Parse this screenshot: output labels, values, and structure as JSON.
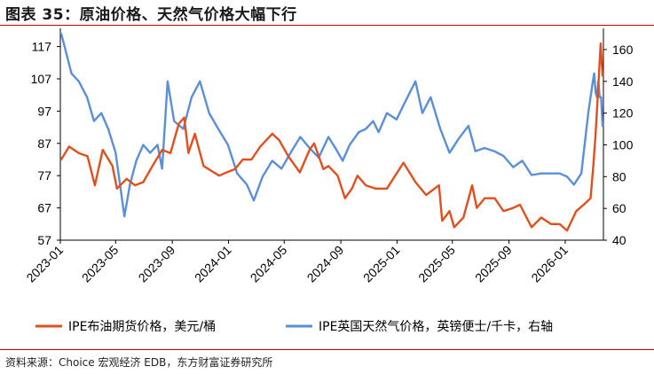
{
  "title": "图表 35：原油价格、天然气价格大幅下行",
  "source": "资料来源：Choice 宏观经济 EDB，东方财富证券研究所",
  "chart_data": {
    "type": "line",
    "x_tick_labels": [
      "2023-01",
      "2023-05",
      "2023-09",
      "2024-01",
      "2024-05",
      "2024-09",
      "2025-01",
      "2025-05",
      "2025-09",
      "2026-01"
    ],
    "y_left": {
      "ticks": [
        "57",
        "67",
        "77",
        "87",
        "97",
        "107",
        "117"
      ],
      "range": [
        57,
        121
      ]
    },
    "y_right": {
      "ticks": [
        "40",
        "60",
        "80",
        "100",
        "120",
        "140",
        "160"
      ],
      "range": [
        40,
        170
      ]
    },
    "legend_position": "bottom",
    "series": [
      {
        "name": "IPE布油期货价格，美元/桶",
        "axis": "left",
        "color": "#E0501E",
        "x": [
          "2023-01-03",
          "2023-01-20",
          "2023-02-10",
          "2023-03-01",
          "2023-03-17",
          "2023-04-03",
          "2023-04-24",
          "2023-05-04",
          "2023-05-25",
          "2023-06-12",
          "2023-06-30",
          "2023-07-20",
          "2023-08-10",
          "2023-08-28",
          "2023-09-15",
          "2023-09-27",
          "2023-10-06",
          "2023-10-20",
          "2023-11-08",
          "2023-11-30",
          "2023-12-12",
          "2023-12-28",
          "2024-01-15",
          "2024-02-01",
          "2024-02-20",
          "2024-03-10",
          "2024-04-05",
          "2024-04-20",
          "2024-05-10",
          "2024-06-04",
          "2024-06-25",
          "2024-07-05",
          "2024-07-25",
          "2024-08-05",
          "2024-08-25",
          "2024-09-10",
          "2024-09-25",
          "2024-10-07",
          "2024-10-25",
          "2024-11-15",
          "2024-12-10",
          "2025-01-15",
          "2025-02-10",
          "2025-03-05",
          "2025-04-02",
          "2025-04-09",
          "2025-04-25",
          "2025-05-05",
          "2025-05-25",
          "2025-06-13",
          "2025-06-23",
          "2025-07-10",
          "2025-08-01",
          "2025-08-20",
          "2025-09-10",
          "2025-09-25",
          "2025-10-20",
          "2025-11-10",
          "2025-12-01",
          "2025-12-20",
          "2026-01-05",
          "2026-01-25",
          "2026-02-10",
          "2026-02-25",
          "2026-03-03",
          "2026-03-08",
          "2026-03-12",
          "2026-03-16",
          "2026-03-19",
          "2026-03-23"
        ],
        "values": [
          82,
          86,
          84,
          83,
          74,
          85,
          80,
          73,
          76,
          74,
          75,
          80,
          85,
          84,
          93,
          95,
          84,
          90,
          80,
          78,
          77,
          78,
          79,
          82,
          82,
          86,
          90,
          88,
          83,
          78,
          85,
          87,
          79,
          80,
          77,
          70,
          73,
          77,
          74,
          73,
          73,
          81,
          75,
          71,
          74,
          63,
          66,
          61,
          64,
          74,
          67,
          70,
          70,
          66,
          67,
          68,
          61,
          64,
          62,
          62,
          60,
          66,
          68,
          70,
          80,
          90,
          100,
          110,
          118,
          108
        ]
      },
      {
        "name": "IPE英国天然气价格，英镑便士/千卡，右轴",
        "axis": "right",
        "color": "#5B8FD6",
        "x": [
          "2023-01-03",
          "2023-01-12",
          "2023-01-25",
          "2023-02-10",
          "2023-02-28",
          "2023-03-15",
          "2023-03-31",
          "2023-04-15",
          "2023-05-01",
          "2023-05-20",
          "2023-06-01",
          "2023-06-15",
          "2023-06-30",
          "2023-07-15",
          "2023-07-31",
          "2023-08-10",
          "2023-08-22",
          "2023-09-05",
          "2023-09-25",
          "2023-10-13",
          "2023-10-31",
          "2023-11-20",
          "2023-12-10",
          "2023-12-31",
          "2024-01-20",
          "2024-02-10",
          "2024-02-25",
          "2024-03-15",
          "2024-04-05",
          "2024-04-25",
          "2024-05-15",
          "2024-06-05",
          "2024-06-25",
          "2024-07-15",
          "2024-08-05",
          "2024-08-20",
          "2024-09-05",
          "2024-09-20",
          "2024-10-10",
          "2024-10-25",
          "2024-11-10",
          "2024-11-22",
          "2024-12-10",
          "2024-12-31",
          "2025-01-15",
          "2025-02-10",
          "2025-02-25",
          "2025-03-15",
          "2025-04-05",
          "2025-04-25",
          "2025-05-15",
          "2025-06-05",
          "2025-06-20",
          "2025-07-10",
          "2025-07-31",
          "2025-08-20",
          "2025-09-10",
          "2025-09-30",
          "2025-10-20",
          "2025-11-10",
          "2025-11-30",
          "2025-12-20",
          "2026-01-05",
          "2026-01-20",
          "2026-02-05",
          "2026-02-20",
          "2026-03-02",
          "2026-03-05",
          "2026-03-08",
          "2026-03-11",
          "2026-03-14",
          "2026-03-17",
          "2026-03-20",
          "2026-03-23"
        ],
        "values": [
          170,
          160,
          145,
          140,
          130,
          115,
          120,
          110,
          95,
          55,
          75,
          90,
          100,
          95,
          100,
          85,
          140,
          115,
          110,
          130,
          140,
          120,
          110,
          100,
          82,
          75,
          65,
          80,
          90,
          85,
          95,
          105,
          98,
          92,
          105,
          98,
          90,
          100,
          108,
          110,
          115,
          108,
          120,
          116,
          125,
          140,
          120,
          130,
          110,
          95,
          104,
          112,
          96,
          98,
          96,
          93,
          86,
          90,
          81,
          82,
          82,
          82,
          80,
          75,
          82,
          120,
          140,
          145,
          133,
          130,
          140,
          130,
          130,
          112
        ]
      }
    ]
  }
}
